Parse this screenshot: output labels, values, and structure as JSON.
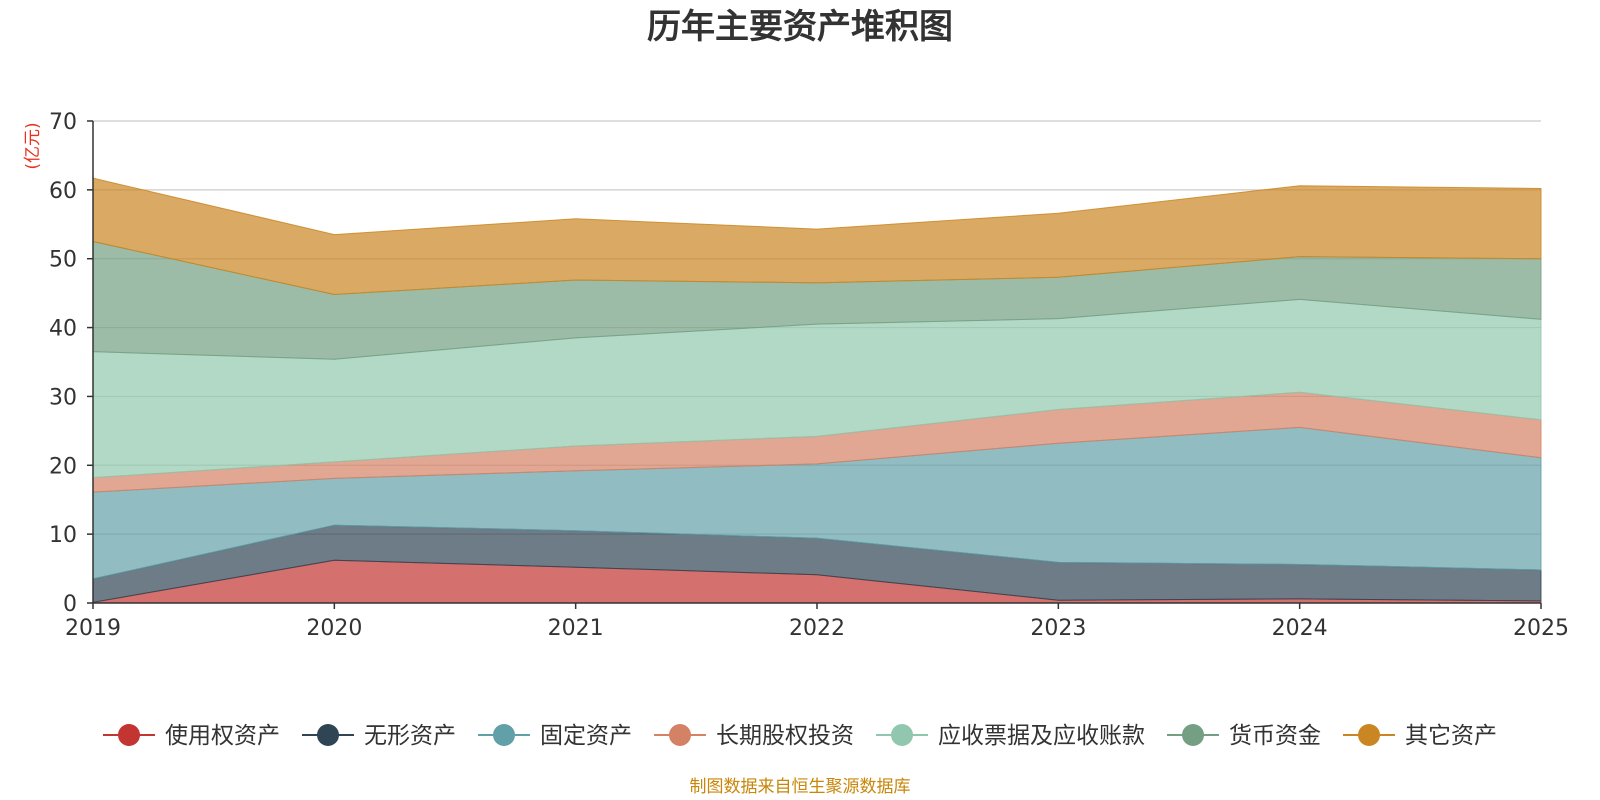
{
  "chart_data": {
    "type": "area",
    "stacked": true,
    "title": "历年主要资产堆积图",
    "ylabel": "(亿元)",
    "xlabel": "",
    "x": [
      "2019",
      "2020",
      "2021",
      "2022",
      "2023",
      "2024",
      "2025"
    ],
    "ylim": [
      0,
      70
    ],
    "yticks": [
      0,
      10,
      20,
      30,
      40,
      50,
      60,
      70
    ],
    "grid": true,
    "legend_position": "bottom",
    "series": [
      {
        "name": "使用权资产",
        "color": "#c23531",
        "values": [
          0.1,
          6.2,
          5.2,
          4.1,
          0.4,
          0.6,
          0.3
        ]
      },
      {
        "name": "无形资产",
        "color": "#2f4554",
        "values": [
          3.4,
          5.1,
          5.3,
          5.3,
          5.5,
          5.0,
          4.5
        ]
      },
      {
        "name": "固定资产",
        "color": "#61a0a8",
        "values": [
          12.6,
          6.8,
          8.7,
          10.8,
          17.3,
          19.9,
          16.3
        ]
      },
      {
        "name": "长期股权投资",
        "color": "#d48265",
        "values": [
          2.1,
          2.4,
          3.6,
          4.0,
          4.9,
          5.1,
          5.5
        ]
      },
      {
        "name": "应收票据及应收账款",
        "color": "#91c7ae",
        "values": [
          18.3,
          14.9,
          15.7,
          16.3,
          13.2,
          13.5,
          14.6
        ]
      },
      {
        "name": "货币资金",
        "color": "#749f83",
        "values": [
          16.0,
          9.4,
          8.4,
          6.0,
          6.0,
          6.2,
          8.8
        ]
      },
      {
        "name": "其它资产",
        "color": "#ca8622",
        "values": [
          9.2,
          8.7,
          8.9,
          7.8,
          9.3,
          10.3,
          10.2
        ]
      }
    ]
  },
  "source_text": "制图数据来自恒生聚源数据库"
}
